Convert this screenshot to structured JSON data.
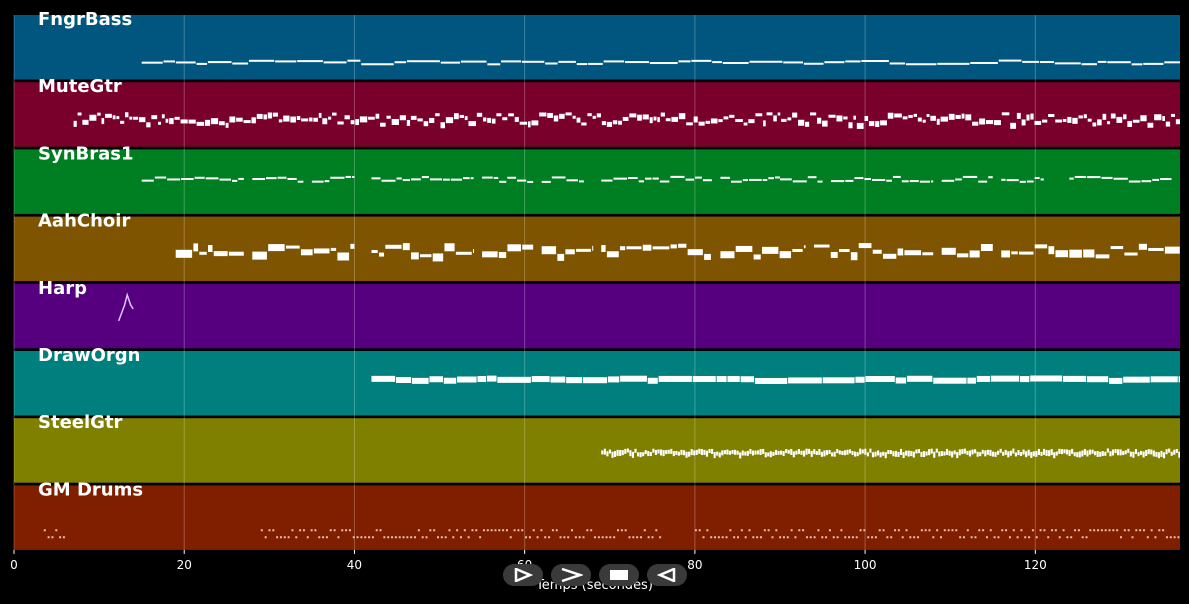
{
  "chart_data": {
    "type": "piano-roll",
    "xlabel": "Temps (secondes)",
    "xlim": [
      0,
      137
    ],
    "x_ticks": [
      0,
      20,
      40,
      60,
      80,
      100,
      120
    ],
    "grid": true,
    "tracks": [
      {
        "name": "FngrBass",
        "color": "#00567f",
        "note_style": "solid",
        "segments": [
          [
            15,
            137
          ]
        ],
        "pitch_center": 0.72,
        "pitch_spread": 0.06,
        "thickness": 2
      },
      {
        "name": "MuteGtr",
        "color": "#7a002c",
        "note_style": "dense",
        "segments": [
          [
            7,
            137
          ]
        ],
        "pitch_center": 0.55,
        "pitch_spread": 0.12,
        "thickness": 4
      },
      {
        "name": "SynBras1",
        "color": "#007f22",
        "note_style": "phrased",
        "segments": [
          [
            15,
            27
          ],
          [
            28,
            34
          ],
          [
            35,
            40
          ],
          [
            42,
            54
          ],
          [
            55,
            61
          ],
          [
            62,
            67
          ],
          [
            69,
            82
          ],
          [
            83,
            90
          ],
          [
            90,
            95
          ],
          [
            96,
            108
          ],
          [
            109,
            115
          ],
          [
            116,
            121
          ],
          [
            124,
            136
          ]
        ],
        "pitch_center": 0.45,
        "pitch_spread": 0.08,
        "thickness": 2
      },
      {
        "name": "AahChoir",
        "color": "#7f5400",
        "note_style": "block",
        "segments": [
          [
            19,
            27
          ],
          [
            28,
            40
          ],
          [
            42,
            54
          ],
          [
            55,
            61
          ],
          [
            62,
            68
          ],
          [
            69,
            82
          ],
          [
            83,
            93
          ],
          [
            94,
            108
          ],
          [
            109,
            115
          ],
          [
            116,
            137
          ]
        ],
        "pitch_center": 0.5,
        "pitch_spread": 0.18,
        "thickness": 5
      },
      {
        "name": "Harp",
        "color": "#560080",
        "note_style": "arpeggio",
        "segments": [
          [
            12.3,
            14
          ]
        ],
        "pitch_center": 0.42,
        "pitch_spread": 0.3,
        "thickness": 1
      },
      {
        "name": "DrawOrgn",
        "color": "#007f7f",
        "note_style": "solid",
        "segments": [
          [
            42,
            137
          ]
        ],
        "pitch_center": 0.4,
        "pitch_spread": 0.04,
        "thickness": 6
      },
      {
        "name": "SteelGtr",
        "color": "#7f7f00",
        "note_style": "strum",
        "segments": [
          [
            69,
            137
          ]
        ],
        "pitch_center": 0.5,
        "pitch_spread": 0.05,
        "thickness": 5
      },
      {
        "name": "GM Drums",
        "color": "#7f1f00",
        "note_style": "drums",
        "segments": [
          [
            3.5,
            6
          ],
          [
            29,
            76
          ],
          [
            80,
            137
          ]
        ],
        "pitch_center": 0.68,
        "pitch_spread": 0.12,
        "thickness": 2
      }
    ]
  },
  "controls": {
    "play_label": "play",
    "forward_label": "forward",
    "stop_label": "stop",
    "back_label": "back"
  }
}
